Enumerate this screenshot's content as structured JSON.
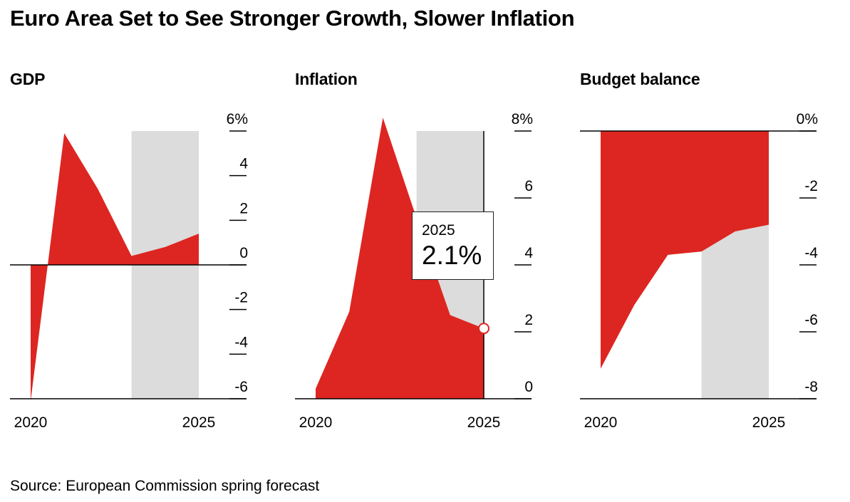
{
  "title": "Euro Area Set to See Stronger Growth, Slower Inflation",
  "source": "Source: European Commission spring forecast",
  "colors": {
    "area": "#dd2621",
    "forecast_band": "#dcdcdc",
    "axis": "#000000",
    "marker_fill": "#ffffff"
  },
  "tooltip": {
    "year": "2025",
    "value": "2.1%"
  },
  "chart_data": [
    {
      "type": "area",
      "title": "GDP",
      "x": [
        2020,
        2021,
        2022,
        2023,
        2024,
        2025
      ],
      "values": [
        -6.1,
        5.9,
        3.4,
        0.4,
        0.8,
        1.4
      ],
      "ylim": [
        -6,
        6
      ],
      "yticks": [
        6,
        4,
        2,
        0,
        -2,
        -4,
        -6
      ],
      "ytick_labels": [
        "6%",
        "4",
        "2",
        "0",
        "-2",
        "-4",
        "-6"
      ],
      "xtick_labels": [
        "2020",
        "2025"
      ],
      "forecast_shaded": [
        2023,
        2025
      ],
      "baseline": 0
    },
    {
      "type": "area",
      "title": "Inflation",
      "x": [
        2020,
        2021,
        2022,
        2023,
        2024,
        2025
      ],
      "values": [
        0.3,
        2.6,
        8.4,
        5.4,
        2.5,
        2.1
      ],
      "ylim": [
        0,
        8
      ],
      "yticks": [
        8,
        6,
        4,
        2,
        0
      ],
      "ytick_labels": [
        "8%",
        "6",
        "4",
        "2",
        "0"
      ],
      "xtick_labels": [
        "2020",
        "2025"
      ],
      "forecast_shaded": [
        2023,
        2025
      ],
      "baseline": 0,
      "highlight": {
        "x": 2025,
        "y": 2.1
      }
    },
    {
      "type": "area",
      "title": "Budget balance",
      "x": [
        2020,
        2021,
        2022,
        2023,
        2024,
        2025
      ],
      "values": [
        -7.1,
        -5.2,
        -3.7,
        -3.6,
        -3.0,
        -2.8
      ],
      "ylim": [
        -8,
        0
      ],
      "yticks": [
        0,
        -2,
        -4,
        -6,
        -8
      ],
      "ytick_labels": [
        "0%",
        "-2",
        "-4",
        "-6",
        "-8"
      ],
      "xtick_labels": [
        "2020",
        "2025"
      ],
      "forecast_shaded": [
        2023,
        2025
      ],
      "baseline": 0
    }
  ]
}
